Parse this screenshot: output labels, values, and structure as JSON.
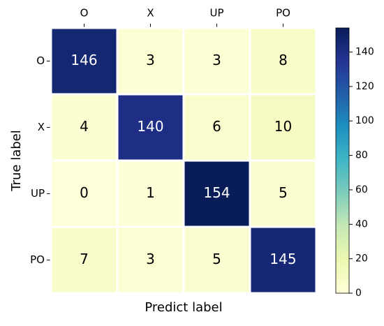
{
  "chart_data": {
    "type": "heatmap",
    "x_label": "Predict label",
    "y_label": "True label",
    "x_categories": [
      "O",
      "X",
      "UP",
      "PO"
    ],
    "y_categories": [
      "O",
      "X",
      "UP",
      "PO"
    ],
    "values": [
      [
        146,
        3,
        3,
        8
      ],
      [
        4,
        140,
        6,
        10
      ],
      [
        0,
        1,
        154,
        5
      ],
      [
        7,
        3,
        5,
        145
      ]
    ],
    "zlim": [
      0,
      154
    ],
    "zticks": [
      0,
      20,
      40,
      60,
      80,
      100,
      120,
      140
    ],
    "colormap": [
      "#ffffd9",
      "#edf8b1",
      "#c7e9b4",
      "#7fcdbb",
      "#41b6c4",
      "#1d91c0",
      "#225ea8",
      "#253494",
      "#081d58"
    ]
  }
}
